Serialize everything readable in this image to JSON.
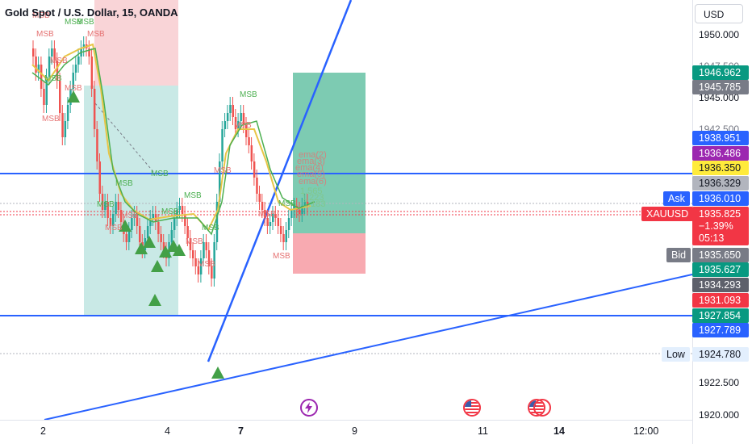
{
  "header": {
    "symbol_title": "Gold Spot / U.S. Dollar, 15, OANDA"
  },
  "currency_button": "USD",
  "price_ticks": [
    "1950.000",
    "1947.500",
    "1945.000",
    "1942.500",
    "1922.500",
    "1920.000"
  ],
  "price_labels": [
    {
      "value": "1946.962",
      "color": "#089981"
    },
    {
      "value": "1945.785",
      "color": "#787b86"
    },
    {
      "value": "1938.951",
      "color": "#2962ff"
    },
    {
      "value": "1936.486",
      "color": "#9c27b0"
    },
    {
      "value": "1936.350",
      "color": "#ffeb3b"
    },
    {
      "value": "1936.329",
      "color": "#b2b5be"
    },
    {
      "value": "1936.010",
      "color": "#2962ff"
    },
    {
      "value": "1935.650",
      "color": "#787b86"
    },
    {
      "value": "1935.627",
      "color": "#089981"
    },
    {
      "value": "1934.293",
      "color": "#5d606b"
    },
    {
      "value": "1931.093",
      "color": "#f23645"
    },
    {
      "value": "1927.854",
      "color": "#089981"
    },
    {
      "value": "1927.789",
      "color": "#2962ff"
    },
    {
      "value": "1924.780",
      "color": "#e3effd"
    }
  ],
  "last_price": {
    "symbol": "XAUUSD",
    "value": "1935.825",
    "change": "−1.39%",
    "countdown": "05:13",
    "color": "#f23645"
  },
  "side_tags": {
    "ask": "Ask",
    "bid": "Bid",
    "low": "Low"
  },
  "x_labels": [
    {
      "text": "2",
      "bold": false
    },
    {
      "text": "4",
      "bold": false
    },
    {
      "text": "7",
      "bold": true
    },
    {
      "text": "9",
      "bold": false
    },
    {
      "text": "11",
      "bold": false
    },
    {
      "text": "14",
      "bold": true
    },
    {
      "text": "12:00",
      "bold": false
    }
  ],
  "chart_annotations": {
    "msb": "MSB"
  },
  "icons": [
    "lightning-event-icon",
    "us-flag-event-icon",
    "us-flag-event-icon-2"
  ]
}
